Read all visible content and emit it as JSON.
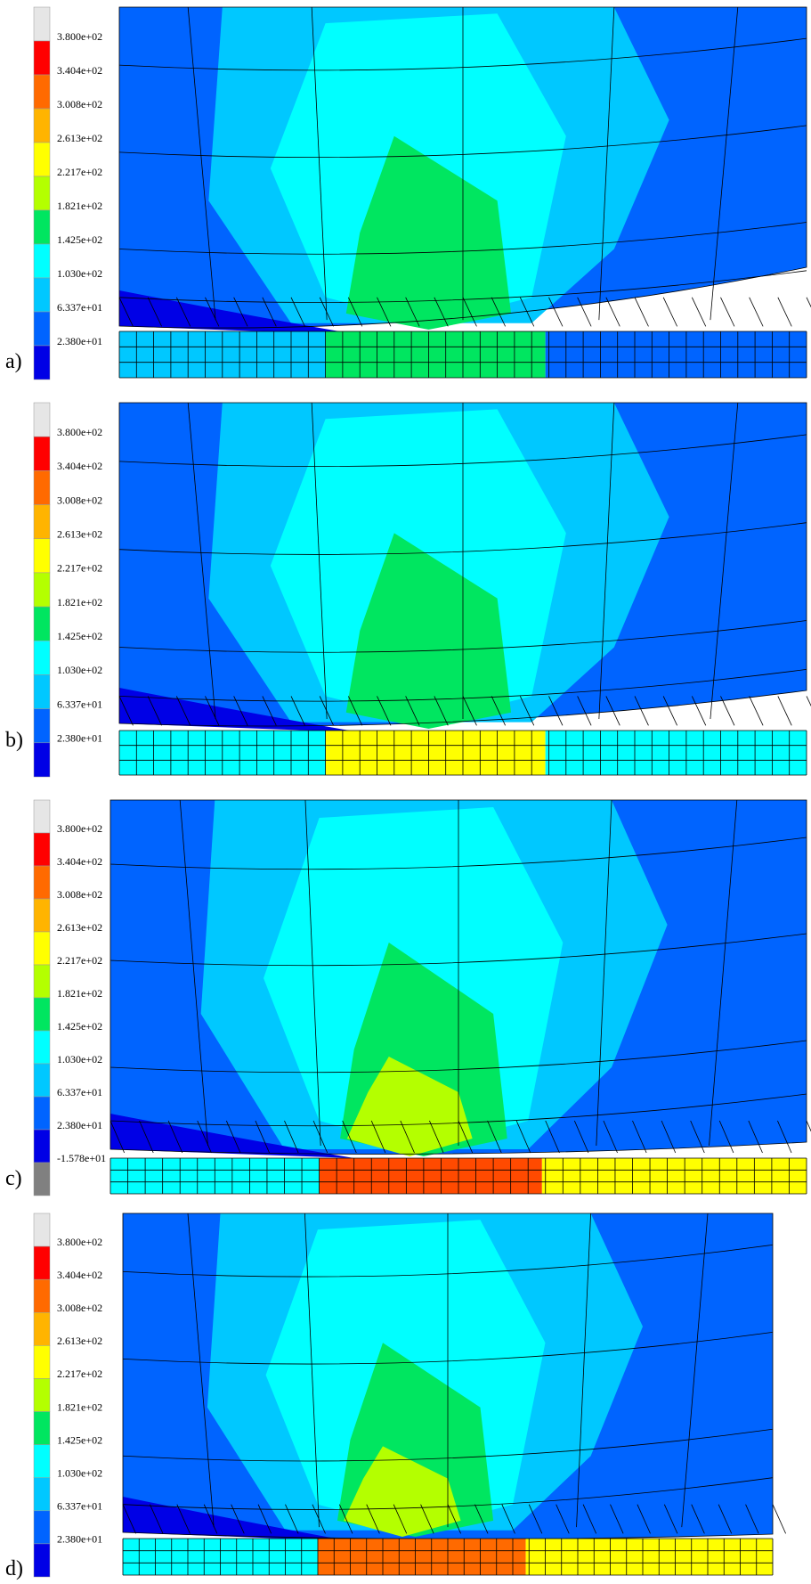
{
  "panels": [
    {
      "label": "a)",
      "legend": [
        "3.800e+02",
        "3.404e+02",
        "3.008e+02",
        "2.613e+02",
        "2.217e+02",
        "1.821e+02",
        "1.425e+02",
        "1.030e+02",
        "6.337e+01",
        "2.380e+01"
      ]
    },
    {
      "label": "b)",
      "legend": [
        "3.800e+02",
        "3.404e+02",
        "3.008e+02",
        "2.613e+02",
        "2.217e+02",
        "1.821e+02",
        "1.425e+02",
        "1.030e+02",
        "6.337e+01",
        "2.380e+01"
      ]
    },
    {
      "label": "c)",
      "legend": [
        "3.800e+02",
        "3.404e+02",
        "3.008e+02",
        "2.613e+02",
        "2.217e+02",
        "1.821e+02",
        "1.425e+02",
        "1.030e+02",
        "6.337e+01",
        "2.380e+01",
        "-1.578e+01"
      ]
    },
    {
      "label": "d)",
      "legend": [
        "3.800e+02",
        "3.404e+02",
        "3.008e+02",
        "2.613e+02",
        "2.217e+02",
        "1.821e+02",
        "1.425e+02",
        "1.030e+02",
        "6.337e+01",
        "2.380e+01"
      ]
    }
  ]
}
